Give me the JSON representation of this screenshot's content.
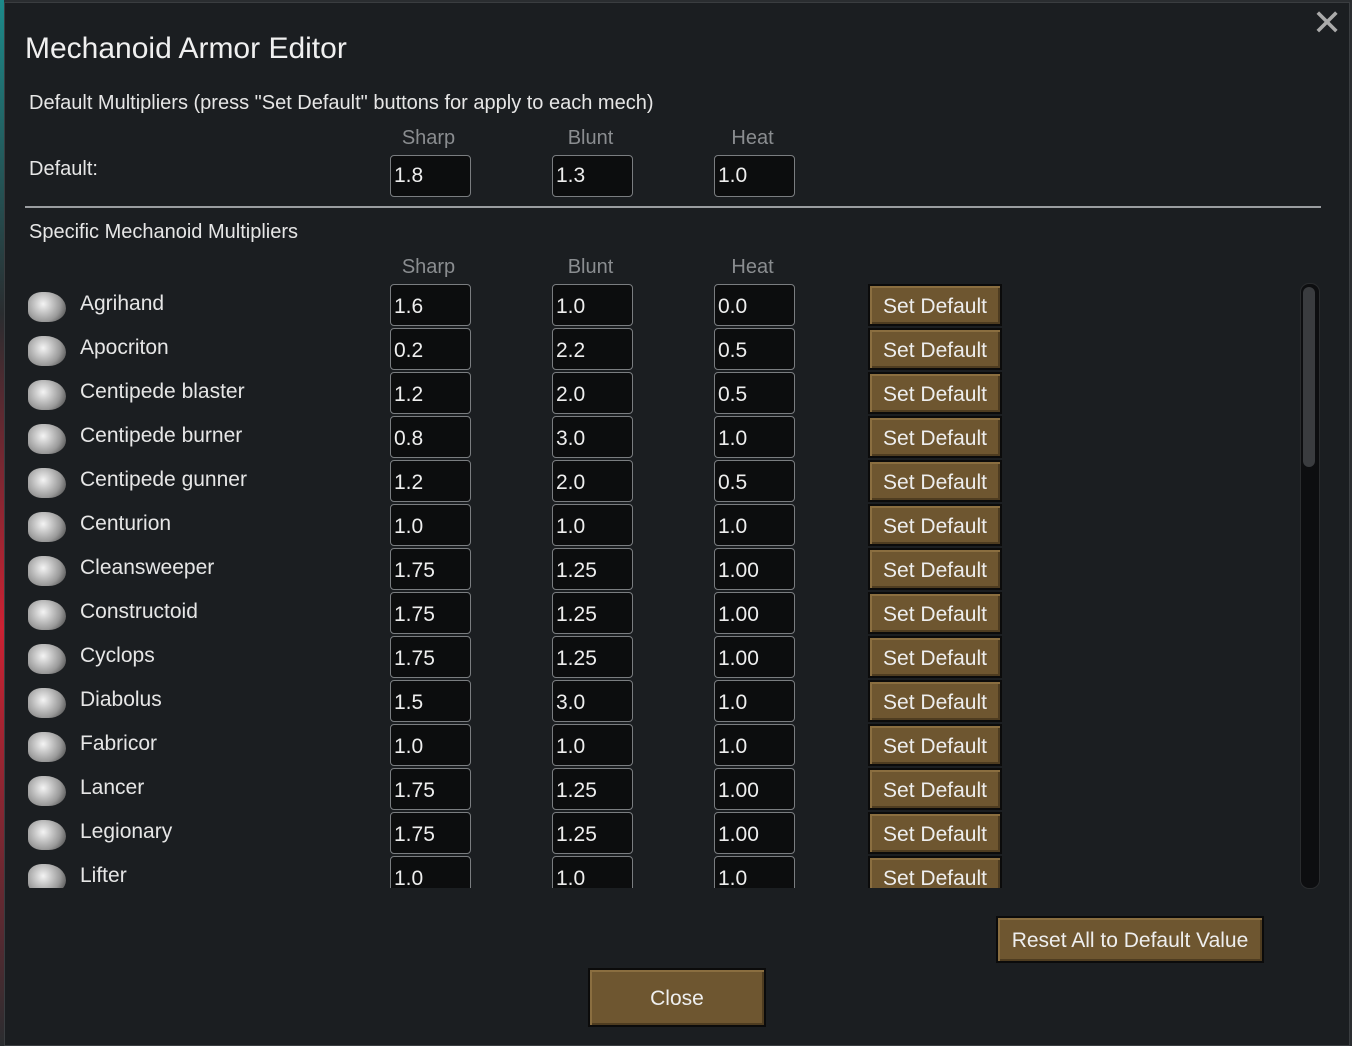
{
  "window": {
    "title": "Mechanoid Armor Editor",
    "close_icon": "close-x-icon"
  },
  "defaults": {
    "heading": "Default Multipliers (press \"Set Default\" buttons for apply to each mech)",
    "label": "Default:",
    "headers": [
      "Sharp",
      "Blunt",
      "Heat"
    ],
    "values": [
      "1.8",
      "1.3",
      "1.0"
    ]
  },
  "specific": {
    "heading": "Specific Mechanoid Multipliers",
    "headers": [
      "Sharp",
      "Blunt",
      "Heat"
    ],
    "button_label": "Set Default",
    "rows": [
      {
        "name": "Agrihand",
        "icon": "agrihand-icon",
        "values": [
          "1.6",
          "1.0",
          "0.0"
        ]
      },
      {
        "name": "Apocriton",
        "icon": "apocriton-icon",
        "values": [
          "0.2",
          "2.2",
          "0.5"
        ]
      },
      {
        "name": "Centipede blaster",
        "icon": "centipede-blaster-icon",
        "values": [
          "1.2",
          "2.0",
          "0.5"
        ]
      },
      {
        "name": "Centipede burner",
        "icon": "centipede-burner-icon",
        "values": [
          "0.8",
          "3.0",
          "1.0"
        ]
      },
      {
        "name": "Centipede gunner",
        "icon": "centipede-gunner-icon",
        "values": [
          "1.2",
          "2.0",
          "0.5"
        ]
      },
      {
        "name": "Centurion",
        "icon": "centurion-icon",
        "values": [
          "1.0",
          "1.0",
          "1.0"
        ]
      },
      {
        "name": "Cleansweeper",
        "icon": "cleansweeper-icon",
        "values": [
          "1.75",
          "1.25",
          "1.00"
        ]
      },
      {
        "name": "Constructoid",
        "icon": "constructoid-icon",
        "values": [
          "1.75",
          "1.25",
          "1.00"
        ]
      },
      {
        "name": "Cyclops",
        "icon": "cyclops-icon",
        "values": [
          "1.75",
          "1.25",
          "1.00"
        ]
      },
      {
        "name": "Diabolus",
        "icon": "diabolus-icon",
        "values": [
          "1.5",
          "3.0",
          "1.0"
        ]
      },
      {
        "name": "Fabricor",
        "icon": "fabricor-icon",
        "values": [
          "1.0",
          "1.0",
          "1.0"
        ]
      },
      {
        "name": "Lancer",
        "icon": "lancer-icon",
        "values": [
          "1.75",
          "1.25",
          "1.00"
        ]
      },
      {
        "name": "Legionary",
        "icon": "legionary-icon",
        "values": [
          "1.75",
          "1.25",
          "1.00"
        ]
      },
      {
        "name": "Lifter",
        "icon": "lifter-icon",
        "values": [
          "1.0",
          "1.0",
          "1.0"
        ]
      }
    ]
  },
  "footer": {
    "reset_label": "Reset All to Default Value",
    "close_label": "Close"
  },
  "colors": {
    "button": "#6e5630",
    "background": "#1b1e21"
  }
}
